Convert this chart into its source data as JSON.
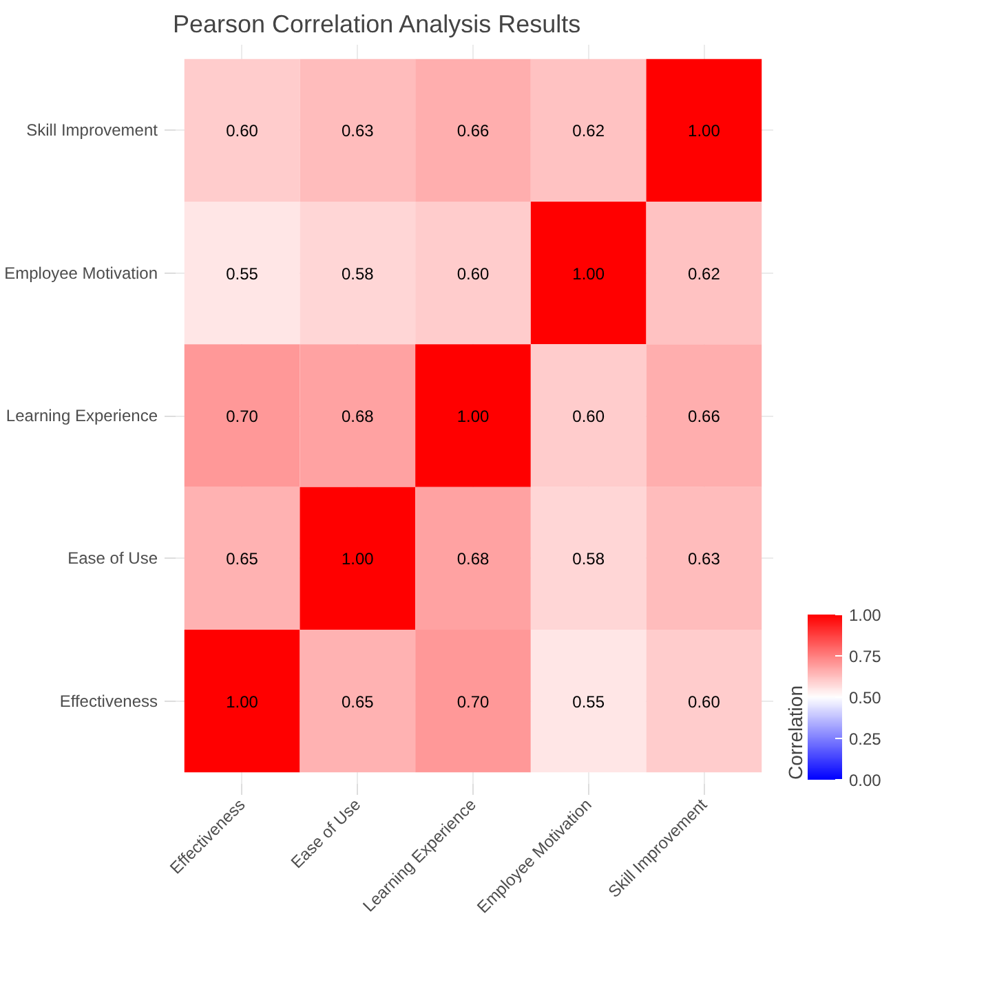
{
  "chart_data": {
    "type": "heatmap",
    "title": "Pearson Correlation Analysis Results",
    "categories": [
      "Effectiveness",
      "Ease of Use",
      "Learning Experience",
      "Employee Motivation",
      "Skill Improvement"
    ],
    "y_categories": [
      "Skill Improvement",
      "Employee Motivation",
      "Learning Experience",
      "Ease of Use",
      "Effectiveness"
    ],
    "cells": [
      [
        0.6,
        0.63,
        0.66,
        0.62,
        1.0
      ],
      [
        0.55,
        0.58,
        0.6,
        1.0,
        0.62
      ],
      [
        0.7,
        0.68,
        1.0,
        0.6,
        0.66
      ],
      [
        0.65,
        1.0,
        0.68,
        0.58,
        0.63
      ],
      [
        1.0,
        0.65,
        0.7,
        0.55,
        0.6
      ]
    ],
    "cell_labels": [
      [
        "0.60",
        "0.63",
        "0.66",
        "0.62",
        "1.00"
      ],
      [
        "0.55",
        "0.58",
        "0.60",
        "1.00",
        "0.62"
      ],
      [
        "0.70",
        "0.68",
        "1.00",
        "0.60",
        "0.66"
      ],
      [
        "0.65",
        "1.00",
        "0.68",
        "0.58",
        "0.63"
      ],
      [
        "1.00",
        "0.65",
        "0.70",
        "0.55",
        "0.60"
      ]
    ],
    "clabel": "Correlation",
    "clim": [
      0,
      1
    ],
    "cticks": [
      {
        "value": 0,
        "label": "0.00"
      },
      {
        "value": 0.25,
        "label": "0.25"
      },
      {
        "value": 0.5,
        "label": "0.50"
      },
      {
        "value": 0.75,
        "label": "0.75"
      },
      {
        "value": 1,
        "label": "1.00"
      }
    ],
    "grid": true
  }
}
